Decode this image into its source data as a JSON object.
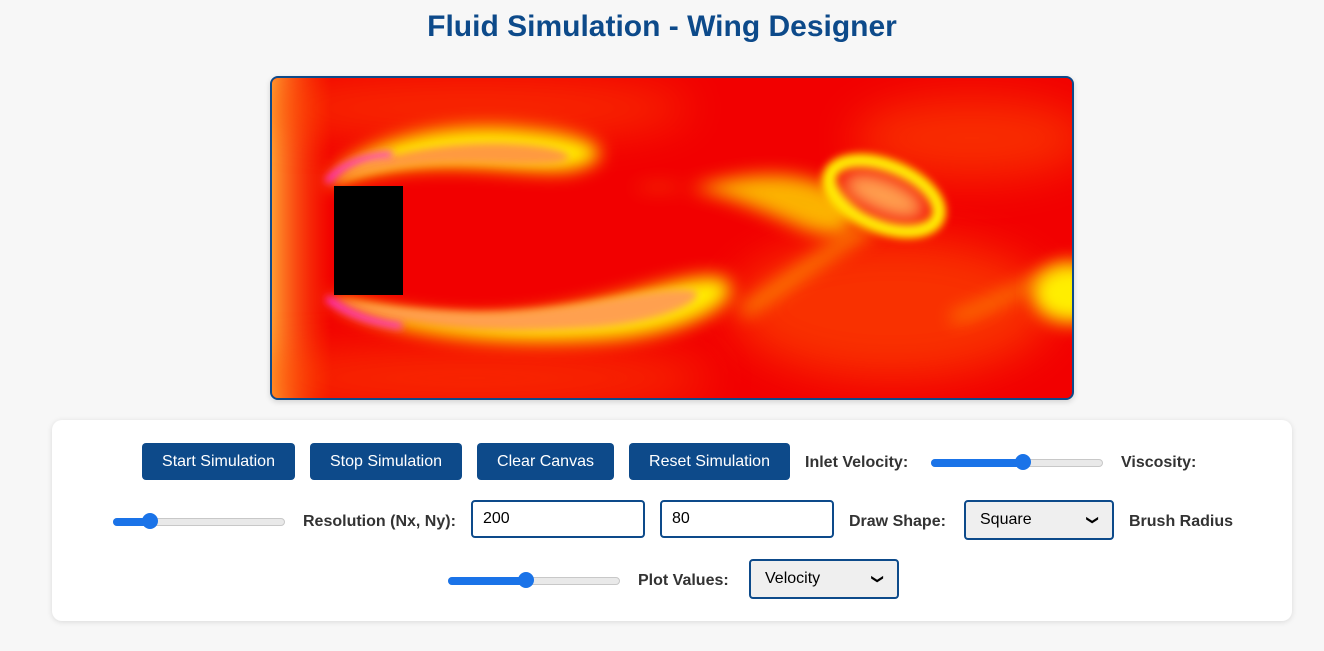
{
  "title": "Fluid Simulation - Wing Designer",
  "buttons": {
    "start": "Start Simulation",
    "stop": "Stop Simulation",
    "clear": "Clear Canvas",
    "reset": "Reset Simulation"
  },
  "labels": {
    "inlet_velocity": "Inlet Velocity:",
    "viscosity": "Viscosity:",
    "resolution": "Resolution (Nx, Ny):",
    "draw_shape": "Draw Shape:",
    "brush_radius": "Brush Radius",
    "plot_values": "Plot Values:"
  },
  "values": {
    "nx": "200",
    "ny": "80",
    "draw_shape": "Square",
    "plot_values": "Velocity",
    "inlet_velocity_fraction": 0.54,
    "viscosity_fraction": 0.22,
    "brush_radius_fraction": 0.46
  },
  "icons": {
    "select_chevron": "chevron-down-icon"
  },
  "colors": {
    "accent": "#0d4a8a",
    "slider": "#1a73e8",
    "field_base": "#f20000",
    "field_mid": "#ff6a00",
    "field_high": "#ffff00",
    "field_peak": "#ff33dd"
  }
}
